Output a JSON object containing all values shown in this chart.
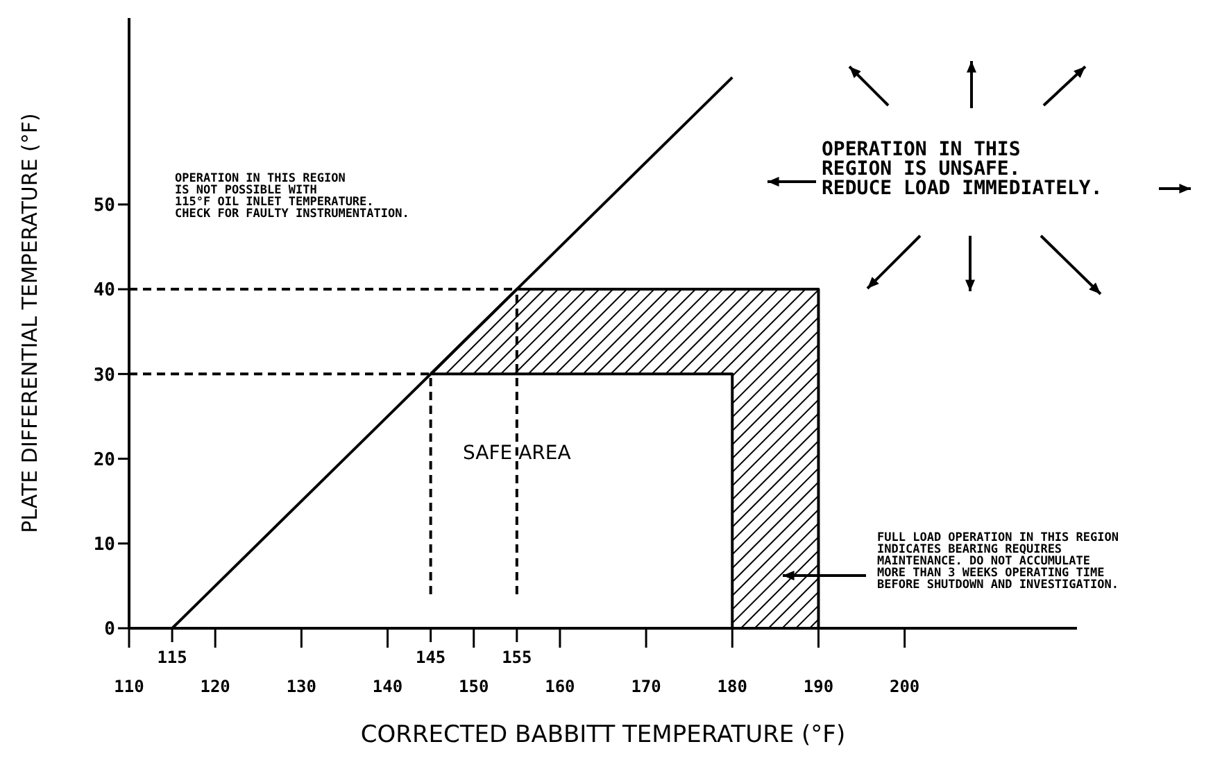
{
  "chart_data": {
    "type": "line",
    "xlabel": "CORRECTED BABBITT TEMPERATURE (°F)",
    "ylabel": "PLATE DIFFERENTIAL TEMPERATURE (°F)",
    "xlim": [
      110,
      220
    ],
    "ylim": [
      0,
      72
    ],
    "xticks": [
      110,
      120,
      130,
      140,
      150,
      160,
      170,
      180,
      190,
      200
    ],
    "yticks": [
      0,
      10,
      20,
      30,
      40,
      50
    ],
    "grid": false,
    "legend": false,
    "marker": "none",
    "series": [
      {
        "color": "#000000",
        "line_style": "solid",
        "x": [
          115,
          180
        ],
        "values": [
          0,
          65
        ]
      },
      {
        "type": "line",
        "color": "#000000",
        "line_style": "solid",
        "x": [
          145,
          180,
          180
        ],
        "values": [
          30,
          30,
          0
        ]
      },
      {
        "type": "line",
        "color": "#000000",
        "line_style": "solid",
        "x": [
          155,
          190,
          190
        ],
        "values": [
          40,
          40,
          0
        ]
      },
      {
        "type": "line",
        "color": "#000000",
        "line_style": "solid",
        "x": [
          145,
          155,
          180,
          180,
          190
        ],
        "values": [
          30,
          40,
          40,
          40,
          40
        ],
        "lower": [
          30,
          30,
          30,
          0,
          0
        ],
        "upper": [
          30,
          40,
          40,
          40,
          40
        ]
      },
      {
        "type": "line",
        "color": "#000000",
        "line_style": "dashed",
        "x": [
          110,
          145
        ],
        "values": [
          30,
          30
        ]
      },
      {
        "type": "line",
        "color": "#000000",
        "line_style": "dashed",
        "x": [
          110,
          155
        ],
        "values": [
          40,
          40
        ]
      },
      {
        "type": "line",
        "color": "#000000",
        "line_style": "dashed",
        "x": [
          145,
          145
        ],
        "values": [
          4,
          30
        ]
      },
      {
        "type": "line",
        "color": "#000000",
        "line_style": "dashed",
        "x": [
          155,
          155
        ],
        "values": [
          4,
          40
        ]
      }
    ],
    "annotations": [
      "OPERATION IN THIS REGION\nIS NOT POSSIBLE WITH\n115°F OIL INLET TEMPERATURE.\nCHECK FOR FAULTY INSTRUMENTATION.",
      "OPERATION IN THIS\nREGION IS UNSAFE.\nREDUCE LOAD IMMEDIATELY.",
      "FULL LOAD OPERATION IN THIS REGION\nINDICATES BEARING REQUIRES\nMAINTENANCE. DO NOT ACCUMULATE\nMORE THAN 3 WEEKS OPERATING TIME\nBEFORE SHUTDOWN AND INVESTIGATION.",
      {
        "text": "SAFE AREA",
        "x": 155,
        "y": 20
      },
      {
        "text": "115",
        "x": 115,
        "y": 0
      },
      {
        "text": "145",
        "x": 145
      },
      {
        "text": "155",
        "x": 155
      }
    ]
  }
}
